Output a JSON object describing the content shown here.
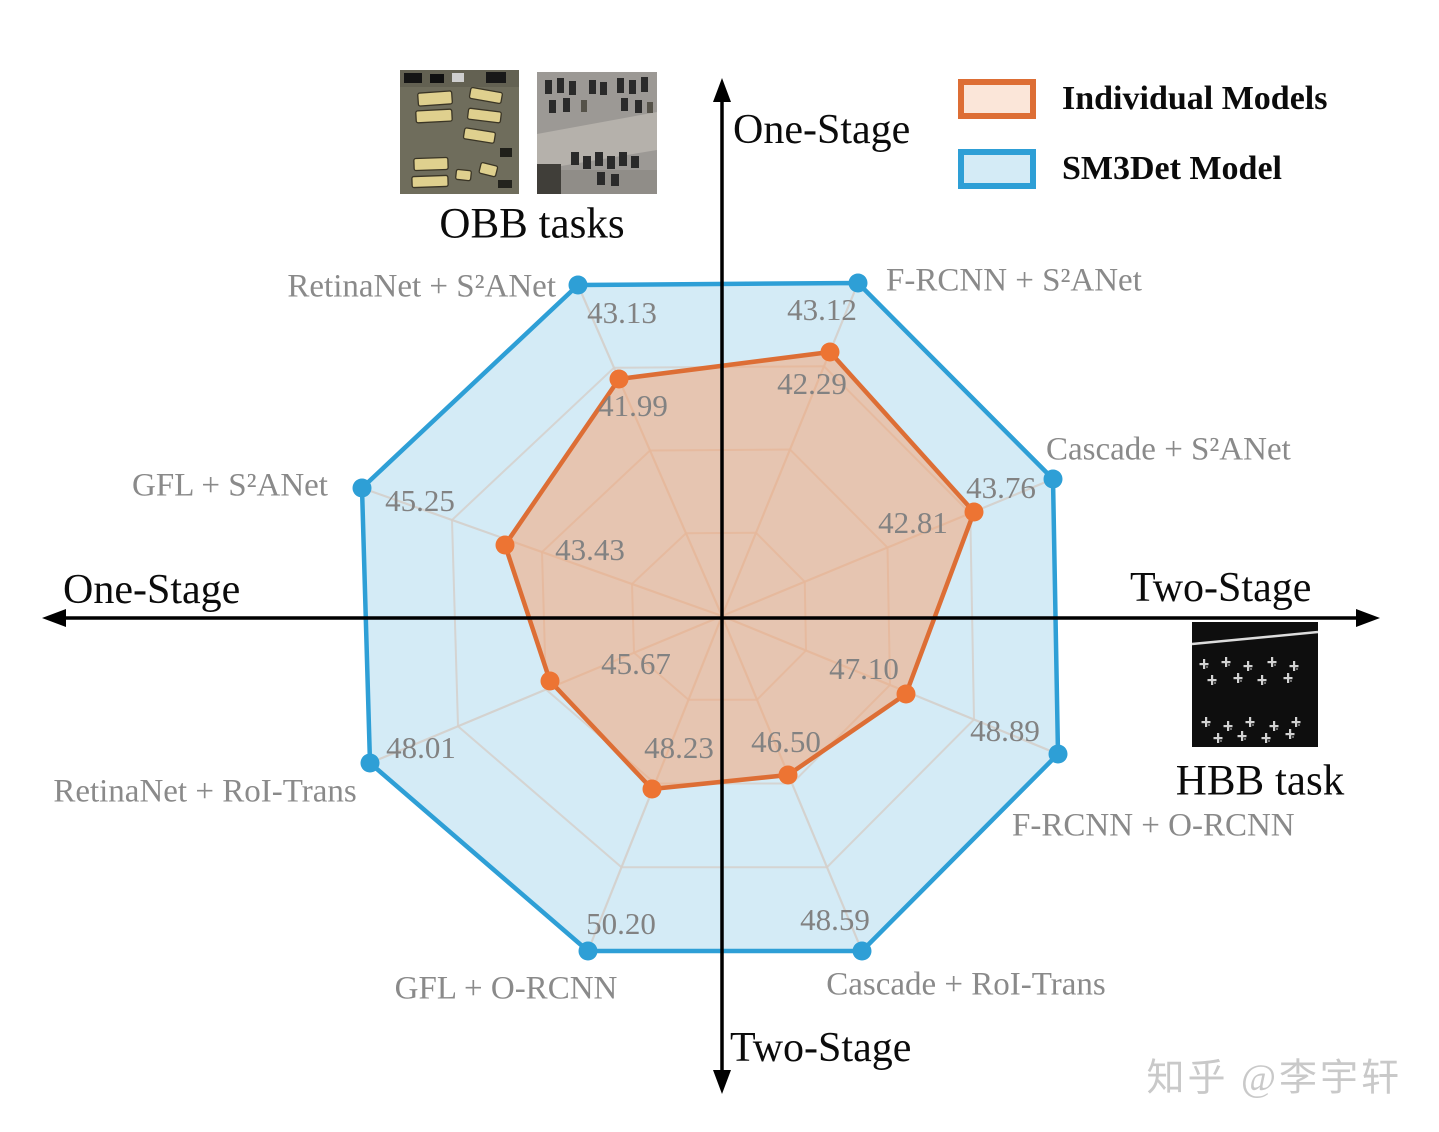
{
  "legend": {
    "items": [
      {
        "label": "Individual Models",
        "stroke": "#DD6E35",
        "fill": "#FBE6D9"
      },
      {
        "label": "SM3Det Model",
        "stroke": "#2E9FD6",
        "fill": "#D4EBF6"
      }
    ]
  },
  "axis_labels": {
    "top": "One-Stage",
    "bottom": "Two-Stage",
    "left": "One-Stage",
    "right": "Two-Stage"
  },
  "captions": {
    "obb": "OBB tasks",
    "hbb": "HBB task"
  },
  "watermark": "知乎 @李宇轩",
  "colors": {
    "individual_stroke": "#DD6E35",
    "individual_point": "#ED7433",
    "individual_overlay": "#F7A06C",
    "sm3det_stroke": "#2E9FD6",
    "sm3det_fill": "#D4EBF6",
    "grid": "#D5D0CB",
    "axis": "#000000",
    "label_gray": "#8a8a8a"
  },
  "chart_data": {
    "type": "radar",
    "series_names": [
      "SM3Det Model",
      "Individual Models"
    ],
    "legend_position": "top-right",
    "grid": "on",
    "axes": [
      {
        "label": "RetinaNet + S²ANet",
        "sm3det_value": "43.13",
        "individual_value": "41.99"
      },
      {
        "label": "F-RCNN + S²ANet",
        "sm3det_value": "43.12",
        "individual_value": "42.29"
      },
      {
        "label": "Cascade + S²ANet",
        "sm3det_value": "43.76",
        "individual_value": "42.81"
      },
      {
        "label": "F-RCNN + O-RCNN",
        "sm3det_value": "48.89",
        "individual_value": "47.10"
      },
      {
        "label": "Cascade + RoI-Trans",
        "sm3det_value": "48.59",
        "individual_value": "46.50"
      },
      {
        "label": "GFL + O-RCNN",
        "sm3det_value": "50.20",
        "individual_value": "48.23"
      },
      {
        "label": "RetinaNet + RoI-Trans",
        "sm3det_value": "48.01",
        "individual_value": "45.67"
      },
      {
        "label": "GFL + S²ANet",
        "sm3det_value": "45.25",
        "individual_value": "43.43"
      }
    ]
  }
}
